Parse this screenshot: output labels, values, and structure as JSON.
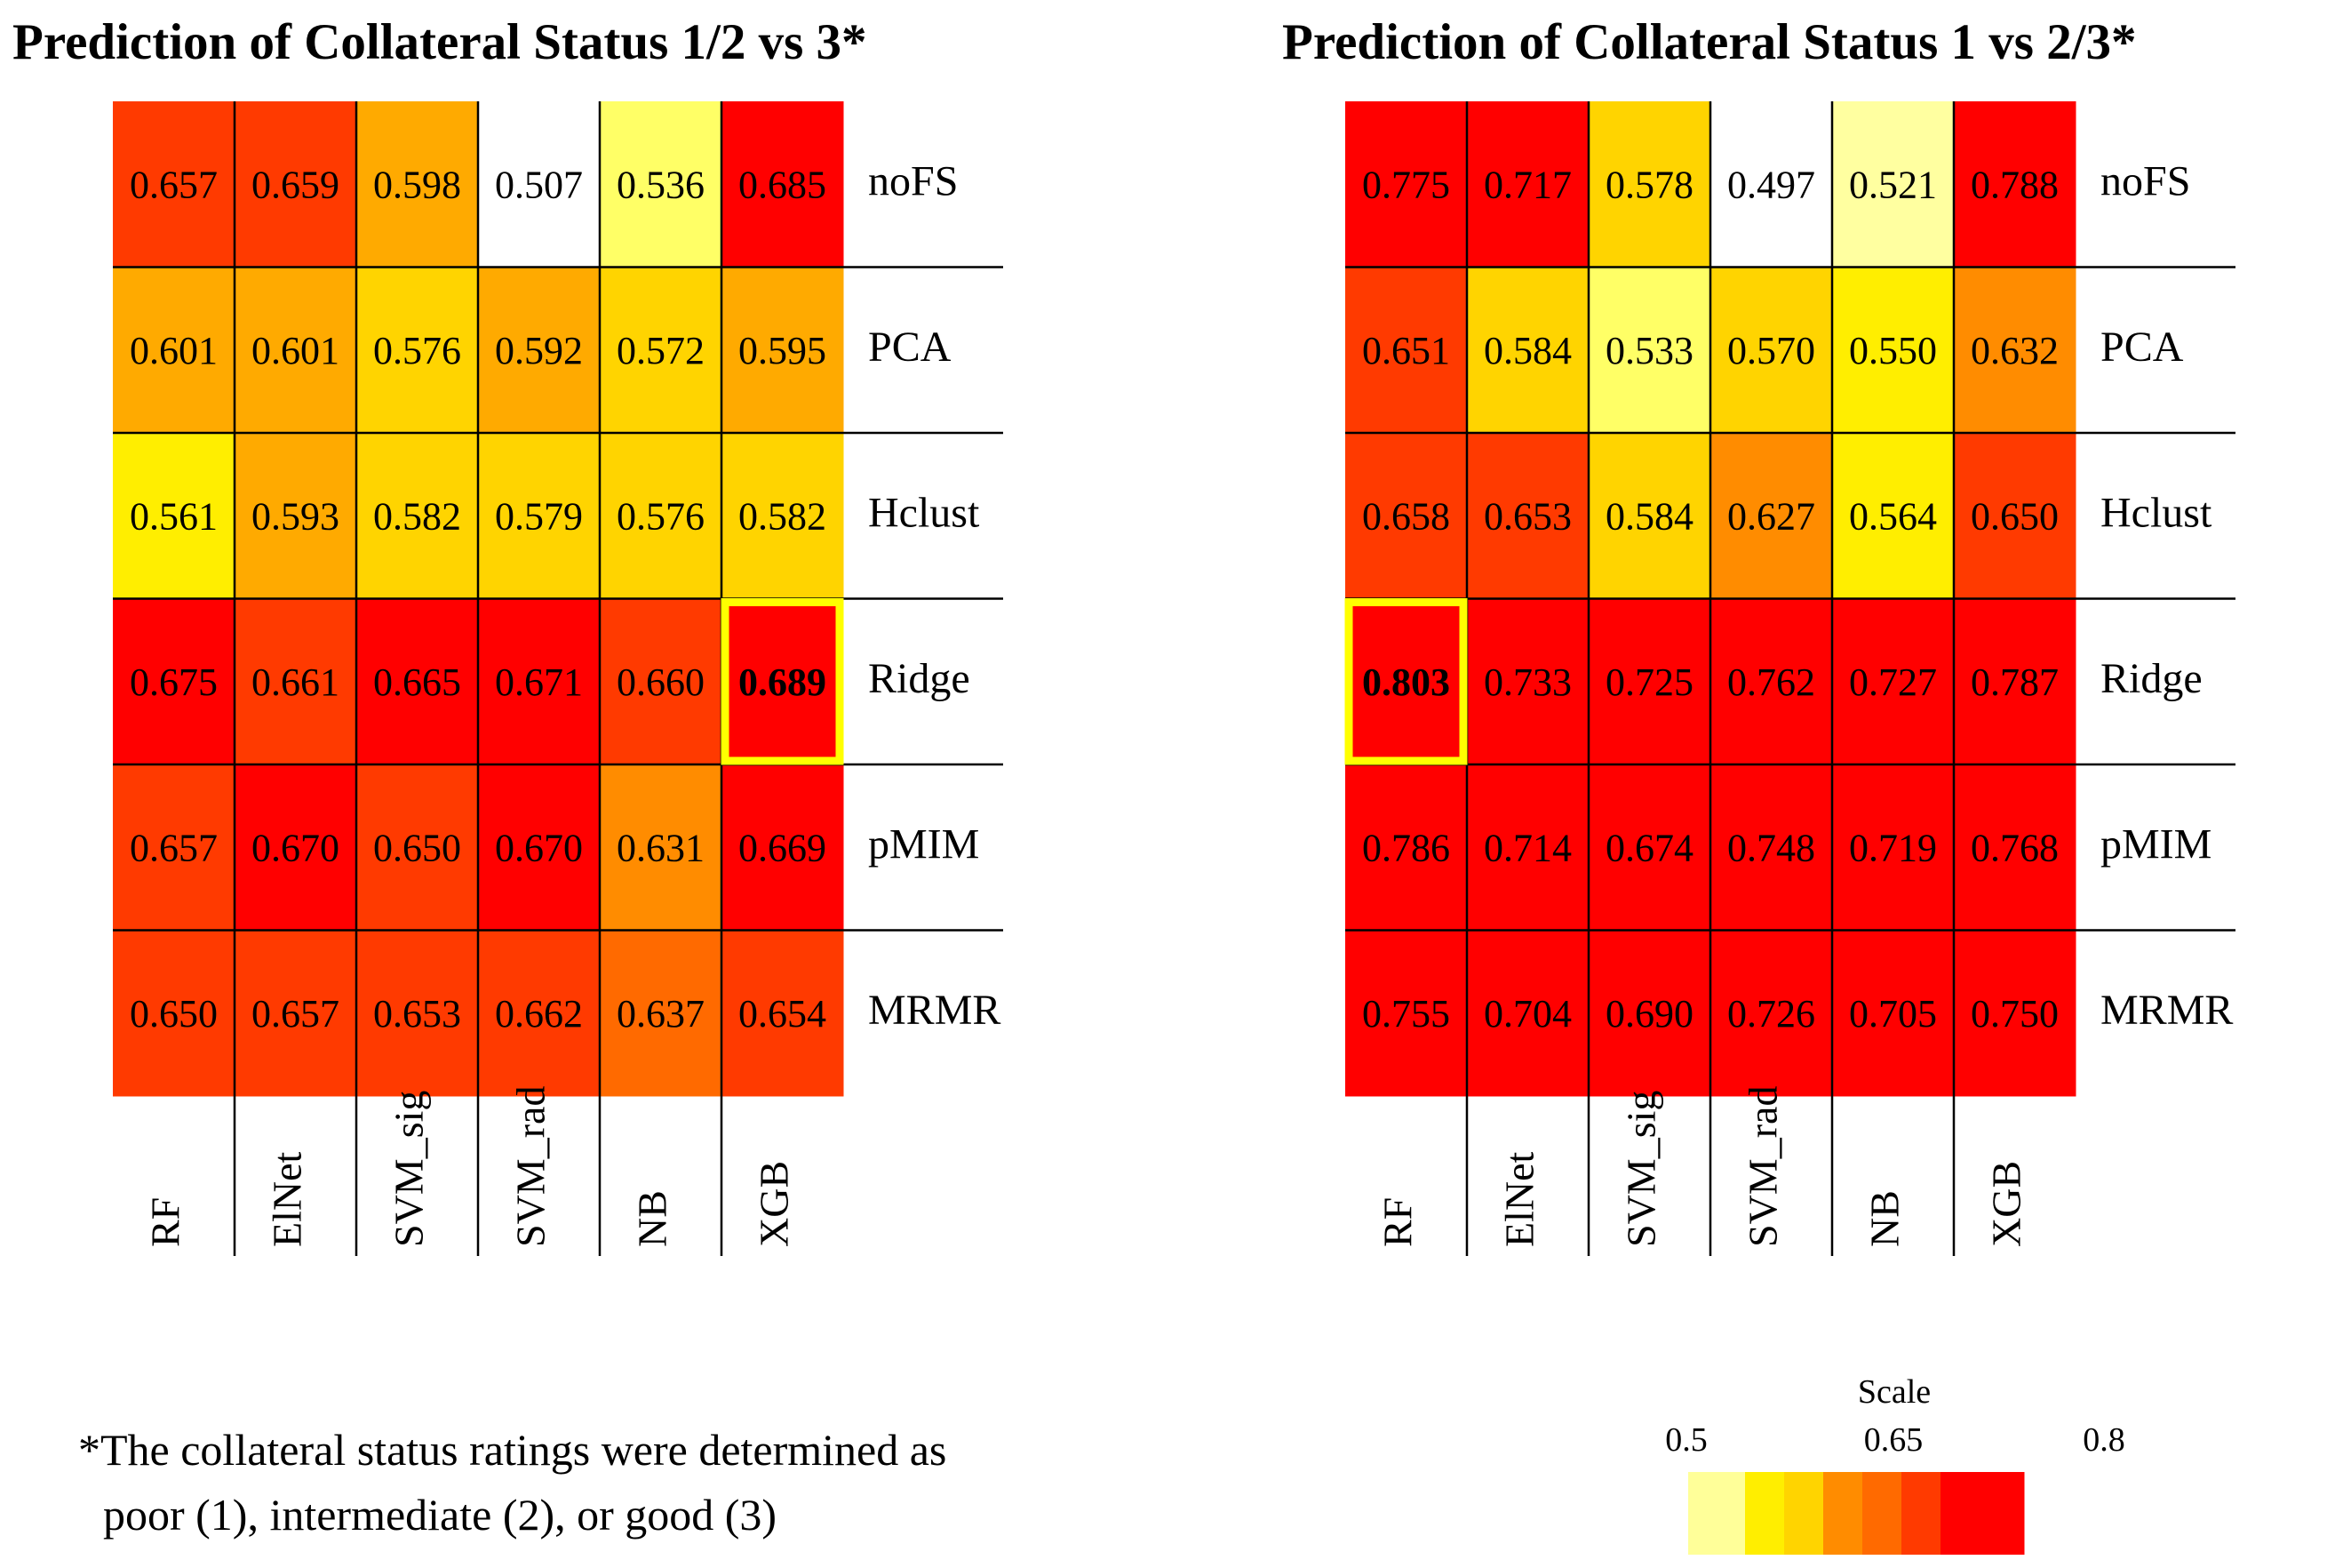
{
  "chart_data": [
    {
      "type": "heatmap",
      "title": "Prediction of Collateral Status 1/2 vs 3*",
      "columns": [
        "RF",
        "ElNet",
        "SVM_sig",
        "SVM_rad",
        "NB",
        "XGB"
      ],
      "rows": [
        "noFS",
        "PCA",
        "Hclust",
        "Ridge",
        "pMIM",
        "MRMR"
      ],
      "values": [
        [
          "0.657",
          "0.659",
          "0.598",
          "0.507",
          "0.536",
          "0.685"
        ],
        [
          "0.601",
          "0.601",
          "0.576",
          "0.592",
          "0.572",
          "0.595"
        ],
        [
          "0.561",
          "0.593",
          "0.582",
          "0.579",
          "0.576",
          "0.582"
        ],
        [
          "0.675",
          "0.661",
          "0.665",
          "0.671",
          "0.660",
          "0.689"
        ],
        [
          "0.657",
          "0.670",
          "0.650",
          "0.670",
          "0.631",
          "0.669"
        ],
        [
          "0.650",
          "0.657",
          "0.653",
          "0.662",
          "0.637",
          "0.654"
        ]
      ],
      "highlight": {
        "row": 3,
        "col": 5
      }
    },
    {
      "type": "heatmap",
      "title": "Prediction of Collateral Status 1 vs 2/3*",
      "columns": [
        "RF",
        "ElNet",
        "SVM_sig",
        "SVM_rad",
        "NB",
        "XGB"
      ],
      "rows": [
        "noFS",
        "PCA",
        "Hclust",
        "Ridge",
        "pMIM",
        "MRMR"
      ],
      "values": [
        [
          "0.775",
          "0.717",
          "0.578",
          "0.497",
          "0.521",
          "0.788"
        ],
        [
          "0.651",
          "0.584",
          "0.533",
          "0.570",
          "0.550",
          "0.632"
        ],
        [
          "0.658",
          "0.653",
          "0.584",
          "0.627",
          "0.564",
          "0.650"
        ],
        [
          "0.803",
          "0.733",
          "0.725",
          "0.762",
          "0.727",
          "0.787"
        ],
        [
          "0.786",
          "0.714",
          "0.674",
          "0.748",
          "0.719",
          "0.768"
        ],
        [
          "0.755",
          "0.704",
          "0.690",
          "0.726",
          "0.705",
          "0.750"
        ]
      ],
      "highlight": {
        "row": 3,
        "col": 0
      }
    }
  ],
  "footnote": {
    "line1": "*The collateral status ratings were determined as",
    "line2": "poor (1), intermediate (2), or good (3)"
  },
  "scale": {
    "title": "Scale",
    "ticks": [
      "0.5",
      "0.65",
      "0.8"
    ],
    "colors": [
      "#ffff99",
      "#ffee00",
      "#ffd400",
      "#ff8c00",
      "#ff6a00",
      "#ff3a00",
      "#ff0000"
    ]
  },
  "colors": {
    "highlight": "#ffff00",
    "grid_line": "#000000"
  }
}
